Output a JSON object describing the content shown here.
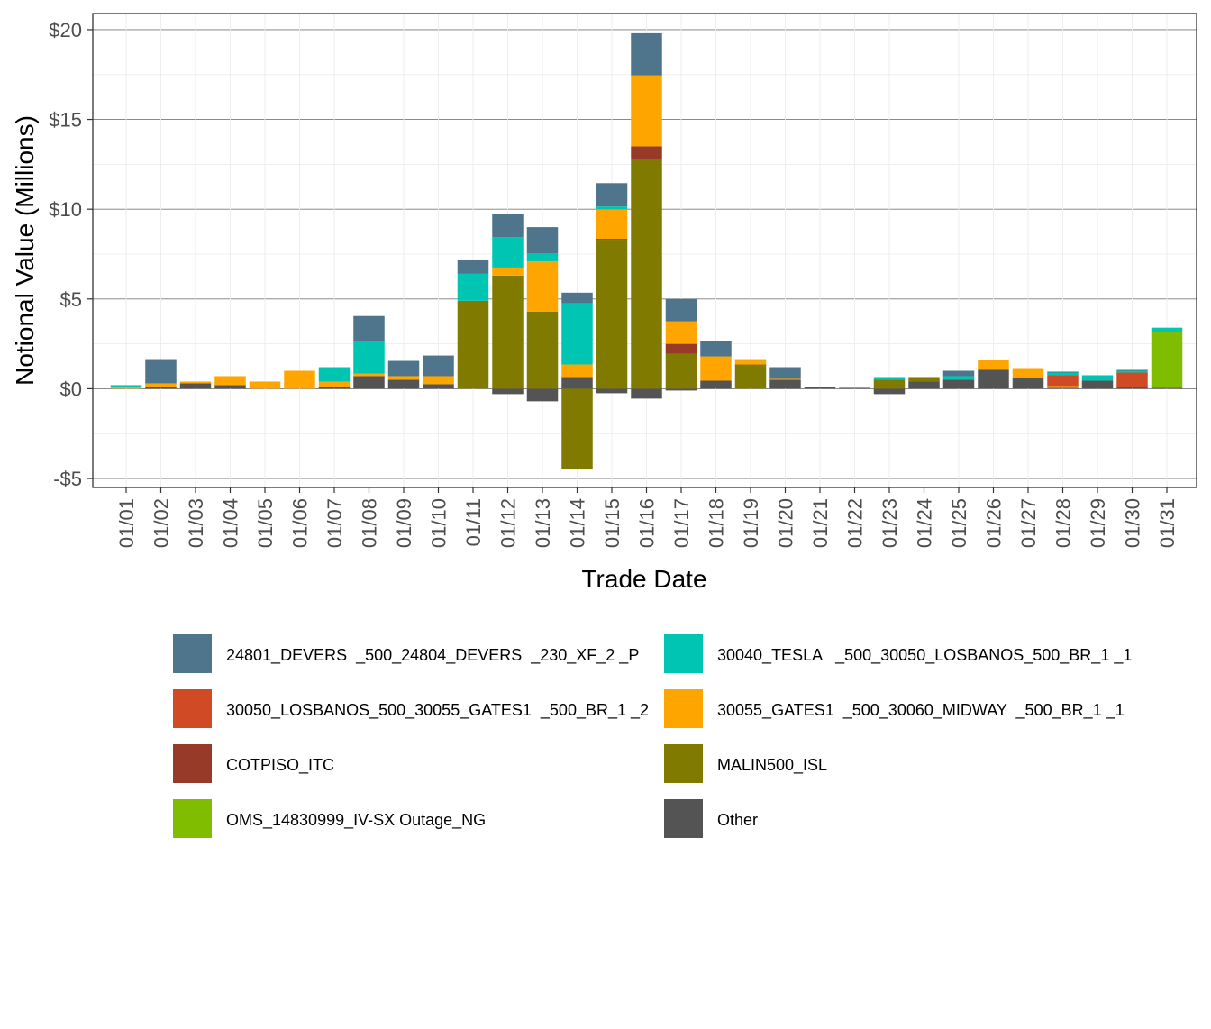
{
  "chart_data": {
    "type": "bar",
    "stacked": true,
    "xlabel": "Trade Date",
    "ylabel": "Notional Value (Millions)",
    "ylim": [
      -5.5,
      20.9
    ],
    "yticks": [
      -5,
      0,
      5,
      10,
      15,
      20
    ],
    "ytick_labels": [
      "-$5",
      "$0",
      "$5",
      "$10",
      "$15",
      "$20"
    ],
    "grid": true,
    "legend_position": "bottom",
    "categories": [
      "01/01",
      "01/02",
      "01/03",
      "01/04",
      "01/05",
      "01/06",
      "01/07",
      "01/08",
      "01/09",
      "01/10",
      "01/11",
      "01/12",
      "01/13",
      "01/14",
      "01/15",
      "01/16",
      "01/17",
      "01/18",
      "01/19",
      "01/20",
      "01/21",
      "01/22",
      "01/23",
      "01/24",
      "01/25",
      "01/26",
      "01/27",
      "01/28",
      "01/29",
      "01/30",
      "01/31"
    ],
    "series": [
      {
        "name": "Other",
        "color": "#545454",
        "values": [
          0,
          0.1,
          0.3,
          0.2,
          0,
          0,
          0.1,
          0.7,
          0.5,
          0.25,
          0,
          -0.3,
          -0.7,
          0.65,
          -0.25,
          -0.55,
          -0.1,
          0.45,
          0,
          0.5,
          0.1,
          0.05,
          -0.3,
          0.4,
          0.5,
          1.05,
          0.6,
          0.05,
          0.45,
          0.1,
          0.05
        ]
      },
      {
        "name": "OMS_14830999_IV-SX Outage_NG",
        "color": "#80bc00",
        "values": [
          0,
          0,
          0,
          0,
          0,
          0,
          0,
          0,
          0,
          0,
          0,
          0,
          0,
          0,
          0,
          0,
          0,
          0,
          0,
          0,
          0,
          0,
          0,
          0,
          0,
          0,
          0,
          0,
          0,
          0,
          3.1
        ]
      },
      {
        "name": "MALIN500_ISL",
        "color": "#807a00",
        "values": [
          0,
          0,
          0,
          0,
          0,
          0,
          0,
          0,
          0,
          0,
          4.9,
          6.3,
          4.3,
          -4.5,
          8.3,
          12.8,
          1.95,
          0,
          1.35,
          0,
          0,
          0,
          0.5,
          0.25,
          0,
          0,
          0,
          0,
          0,
          0,
          0
        ]
      },
      {
        "name": "COTPISO_ITC",
        "color": "#973a27",
        "values": [
          0,
          0,
          0,
          0,
          0,
          0,
          0,
          0,
          0,
          0,
          0,
          0,
          0,
          0,
          0.05,
          0.7,
          0.55,
          0,
          0,
          0,
          0,
          0,
          0,
          0,
          0,
          0,
          0,
          0,
          0,
          0,
          0
        ]
      },
      {
        "name": "30055_GATES1  _500_30060_MIDWAY  _500_BR_1 _1",
        "color": "#ffa500",
        "values": [
          0.1,
          0.2,
          0.1,
          0.5,
          0.4,
          1.0,
          0.3,
          0.15,
          0.2,
          0.45,
          0,
          0.45,
          2.8,
          0.7,
          1.65,
          3.95,
          1.25,
          1.35,
          0.3,
          0.05,
          0,
          0,
          0,
          0,
          0,
          0.55,
          0.55,
          0.1,
          0,
          0,
          0
        ]
      },
      {
        "name": "30050_LOSBANOS_500_30055_GATES1  _500_BR_1 _2",
        "color": "#d04b25",
        "values": [
          0,
          0,
          0,
          0,
          0,
          0,
          0,
          0,
          0,
          0,
          0,
          0,
          0,
          0,
          0,
          0,
          0,
          0,
          0,
          0,
          0,
          0,
          0,
          0,
          0,
          0,
          0,
          0.6,
          0,
          0.8,
          0
        ]
      },
      {
        "name": "30040_TESLA   _500_30050_LOSBANOS_500_BR_1 _1",
        "color": "#00c5b3",
        "values": [
          0.1,
          0,
          0,
          0,
          0,
          0,
          0.8,
          1.8,
          0,
          0,
          1.5,
          1.7,
          0.45,
          3.4,
          0.15,
          0,
          0,
          0,
          0,
          0,
          0,
          0,
          0.15,
          0,
          0.2,
          0,
          0,
          0.15,
          0.3,
          0.1,
          0.25
        ]
      },
      {
        "name": "24801_DEVERS  _500_24804_DEVERS  _230_XF_2 _P",
        "color": "#4e758b",
        "values": [
          0,
          1.35,
          0,
          0,
          0,
          0,
          0,
          1.4,
          0.85,
          1.15,
          0.8,
          1.3,
          1.45,
          0.6,
          1.3,
          2.35,
          1.25,
          0.85,
          0,
          0.65,
          0,
          0,
          0,
          0,
          0.3,
          0,
          0,
          0.05,
          0,
          0.05,
          0
        ]
      }
    ],
    "legend_order": [
      "24801_DEVERS  _500_24804_DEVERS  _230_XF_2 _P",
      "30040_TESLA   _500_30050_LOSBANOS_500_BR_1 _1",
      "30050_LOSBANOS_500_30055_GATES1  _500_BR_1 _2",
      "30055_GATES1  _500_30060_MIDWAY  _500_BR_1 _1",
      "COTPISO_ITC",
      "MALIN500_ISL",
      "OMS_14830999_IV-SX Outage_NG",
      "Other"
    ]
  }
}
